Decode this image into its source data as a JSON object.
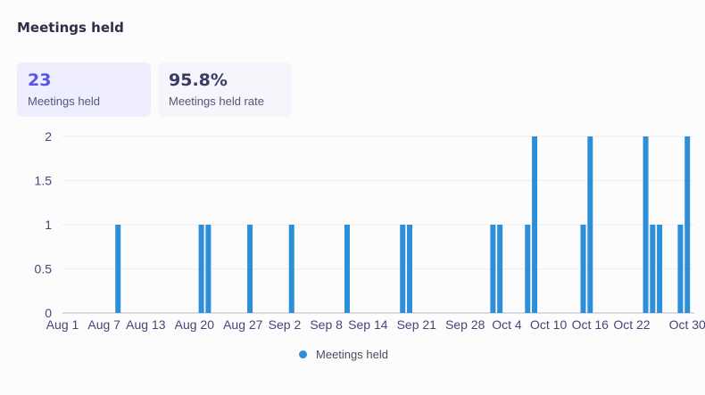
{
  "header": {
    "title": "Meetings held"
  },
  "stats": [
    {
      "value": "23",
      "label": "Meetings held"
    },
    {
      "value": "95.8%",
      "label": "Meetings held rate"
    }
  ],
  "colors": {
    "bar": "#2e8fd9",
    "accent": "#5b54e8"
  },
  "chart_data": {
    "type": "bar",
    "x_type": "date",
    "x_range": [
      "2023-08-01",
      "2023-10-31"
    ],
    "x_tick_labels": [
      "Aug 1",
      "Aug 7",
      "Aug 13",
      "Aug 20",
      "Aug 27",
      "Sep 2",
      "Sep 8",
      "Sep 14",
      "Sep 21",
      "Sep 28",
      "Oct 4",
      "Oct 10",
      "Oct 16",
      "Oct 22",
      "Oct 30"
    ],
    "x_tick_dates": [
      "2023-08-01",
      "2023-08-07",
      "2023-08-13",
      "2023-08-20",
      "2023-08-27",
      "2023-09-02",
      "2023-09-08",
      "2023-09-14",
      "2023-09-21",
      "2023-09-28",
      "2023-10-04",
      "2023-10-10",
      "2023-10-16",
      "2023-10-22",
      "2023-10-30"
    ],
    "y_ticks": [
      "0",
      "0.5",
      "1",
      "1.5",
      "2"
    ],
    "ylim": [
      0,
      2
    ],
    "grid": true,
    "legend": "bottom",
    "series": [
      {
        "name": "Meetings held",
        "x": [
          "2023-08-09",
          "2023-08-21",
          "2023-08-22",
          "2023-08-28",
          "2023-09-03",
          "2023-09-11",
          "2023-09-19",
          "2023-09-20",
          "2023-10-02",
          "2023-10-03",
          "2023-10-07",
          "2023-10-08",
          "2023-10-15",
          "2023-10-16",
          "2023-10-24",
          "2023-10-25",
          "2023-10-26",
          "2023-10-29",
          "2023-10-30"
        ],
        "values": [
          1,
          1,
          1,
          1,
          1,
          1,
          1,
          1,
          1,
          1,
          1,
          2,
          1,
          2,
          2,
          1,
          1,
          1,
          2
        ]
      }
    ]
  }
}
